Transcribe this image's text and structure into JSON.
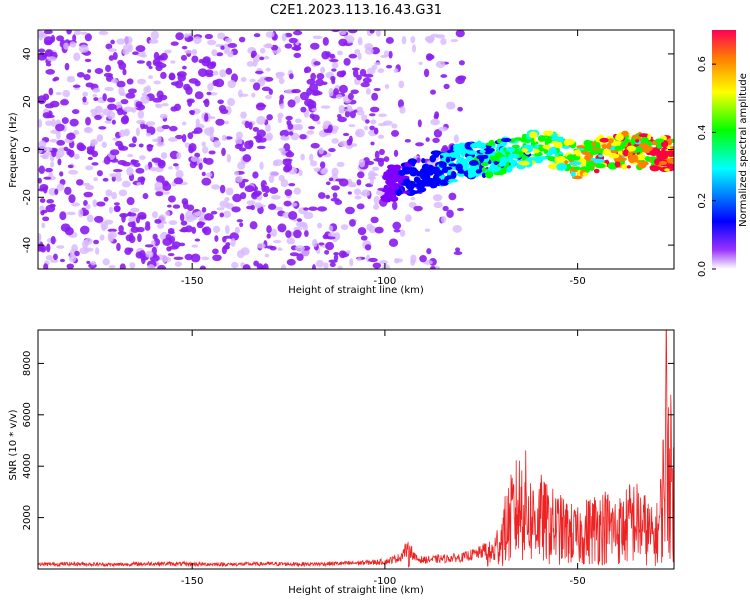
{
  "title": "C2E1.2023.113.16.43.G31",
  "chart_data": [
    {
      "type": "heatmap",
      "xlabel": "Height of straight line (km)",
      "ylabel": "Frequency (Hz)",
      "xlim": [
        -190,
        -25
      ],
      "ylim": [
        -50,
        50
      ],
      "xticks": [
        -150,
        -100,
        -50
      ],
      "xtick_labels": [
        "-150",
        "-100",
        "-50"
      ],
      "yticks": [
        -40,
        -20,
        0,
        20,
        40
      ],
      "ytick_labels": [
        "-40",
        "-20",
        "0",
        "20",
        "40"
      ],
      "colorbar": {
        "label": "Normalized spectral amplitude",
        "range": [
          0,
          0.7
        ],
        "ticks": [
          0.0,
          0.2,
          0.4,
          0.6
        ],
        "tick_labels": [
          "0.0",
          "0.2",
          "0.4",
          "0.6"
        ],
        "colormap": [
          "#ffffff",
          "#7f00ff",
          "#0000ff",
          "#00ffff",
          "#00ff00",
          "#ffff00",
          "#ff8000",
          "#ff0040"
        ]
      },
      "noise_region": {
        "x": [
          -190,
          -80
        ],
        "freq": [
          -50,
          50
        ],
        "amplitude_approx": 0.05
      },
      "signal_track": {
        "x": [
          -100,
          -90,
          -80,
          -70,
          -60,
          -50,
          -40,
          -30,
          -25
        ],
        "freq": [
          -15,
          -10,
          -5,
          -3,
          2,
          -5,
          0,
          -1,
          -2
        ],
        "peak_amplitude_approx": 0.6
      }
    },
    {
      "type": "line",
      "xlabel": "Height of straight line (km)",
      "ylabel": "SNR (10 * v/v)",
      "xlim": [
        -190,
        -25
      ],
      "ylim": [
        0,
        9300
      ],
      "xticks": [
        -150,
        -100,
        -50
      ],
      "xtick_labels": [
        "-150",
        "-100",
        "-50"
      ],
      "yticks": [
        2000,
        4000,
        6000,
        8000
      ],
      "ytick_labels": [
        "2000",
        "4000",
        "6000",
        "8000"
      ],
      "line_color": "#ee2222",
      "series": [
        {
          "x": [
            -190,
            -180,
            -170,
            -160,
            -150,
            -140,
            -130,
            -120,
            -110,
            -100,
            -96,
            -94,
            -92,
            -90,
            -85,
            -80,
            -75,
            -72,
            -70,
            -68,
            -66,
            -64,
            -62,
            -60,
            -58,
            -56,
            -54,
            -52,
            -50,
            -48,
            -46,
            -44,
            -42,
            -40,
            -38,
            -36,
            -34,
            -32,
            -30,
            -29,
            -28,
            -27,
            -26,
            -25
          ],
          "y": [
            180,
            200,
            170,
            210,
            190,
            180,
            200,
            190,
            220,
            280,
            450,
            900,
            400,
            350,
            400,
            450,
            650,
            1000,
            1800,
            2800,
            3600,
            4200,
            3000,
            3200,
            2800,
            2600,
            2400,
            2200,
            2000,
            2300,
            2500,
            2700,
            2600,
            2400,
            2500,
            3000,
            2800,
            2400,
            1800,
            2500,
            4000,
            9000,
            6000,
            4400
          ]
        }
      ]
    }
  ]
}
